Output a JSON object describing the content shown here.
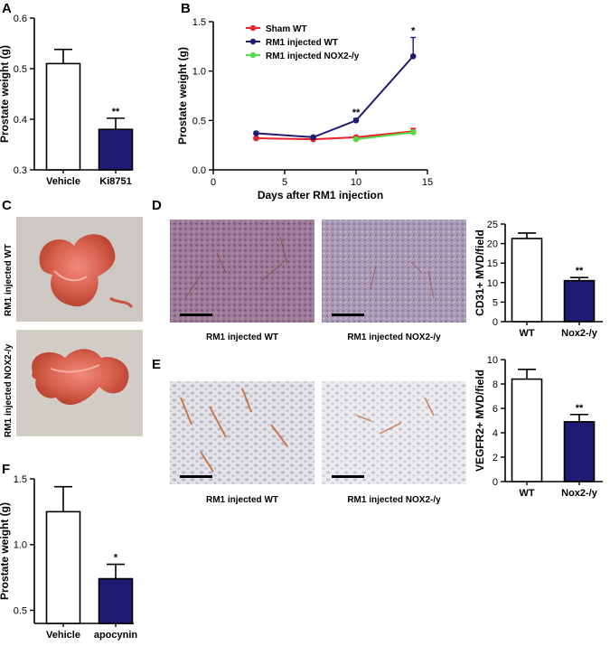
{
  "colors": {
    "navy": "#1f1a72",
    "red": "#e8232a",
    "green": "#55d84a",
    "black": "#000000",
    "white": "#ffffff"
  },
  "chart_data": [
    {
      "id": "A",
      "type": "bar",
      "panel_label": "A",
      "ylabel": "Prostate weight (g)",
      "ylim": [
        0.3,
        0.6
      ],
      "yticks": [
        "0.3",
        "0.4",
        "0.5",
        "0.6"
      ],
      "categories": [
        "Vehicle",
        "Ki8751"
      ],
      "values": [
        0.51,
        0.38
      ],
      "errors": [
        0.028,
        0.022
      ],
      "fills": [
        "#ffffff",
        "#1f1a72"
      ],
      "annotations": [
        "",
        "**"
      ]
    },
    {
      "id": "B",
      "type": "line",
      "panel_label": "B",
      "xlabel": "Days after RM1 injection",
      "ylabel": "Prostate weight (g)",
      "xlim": [
        0,
        15
      ],
      "ylim": [
        0,
        1.5
      ],
      "xticks": [
        "0",
        "5",
        "10",
        "15"
      ],
      "yticks": [
        "0.0",
        "0.5",
        "1.0",
        "1.5"
      ],
      "series": [
        {
          "name": "Sham WT",
          "color": "#e8232a",
          "x": [
            3,
            7,
            10,
            14
          ],
          "y": [
            0.32,
            0.31,
            0.33,
            0.39
          ],
          "errors": [
            0.01,
            0.01,
            0.01,
            0.03
          ]
        },
        {
          "name": "RM1 injected WT",
          "color": "#1f1a72",
          "x": [
            3,
            7,
            10,
            14
          ],
          "y": [
            0.37,
            0.33,
            0.5,
            1.15
          ],
          "errors": [
            0.01,
            0.01,
            0.02,
            0.19
          ]
        },
        {
          "name": "RM1 injected NOX2-/y",
          "color": "#55d84a",
          "x": [
            10,
            14
          ],
          "y": [
            0.31,
            0.38
          ],
          "errors": [
            0.01,
            0.02
          ]
        }
      ],
      "annotations": [
        {
          "x": 10,
          "y": 0.53,
          "text": "**"
        },
        {
          "x": 14,
          "y": 1.36,
          "text": "*"
        }
      ]
    },
    {
      "id": "D",
      "type": "bar",
      "panel_label": "",
      "ylabel": "CD31+ MVD/field",
      "ylim": [
        0,
        25
      ],
      "yticks": [
        "0",
        "5",
        "10",
        "15",
        "20",
        "25"
      ],
      "categories": [
        "WT",
        "Nox2-/y"
      ],
      "values": [
        21.3,
        10.5
      ],
      "errors": [
        1.4,
        0.8
      ],
      "fills": [
        "#ffffff",
        "#1f1a72"
      ],
      "annotations": [
        "",
        "**"
      ]
    },
    {
      "id": "E",
      "type": "bar",
      "panel_label": "",
      "ylabel": "VEGFR2+ MVD/field",
      "ylim": [
        0,
        10
      ],
      "yticks": [
        "0",
        "2",
        "4",
        "6",
        "8",
        "10"
      ],
      "categories": [
        "WT",
        "Nox2-/y"
      ],
      "values": [
        8.4,
        4.9
      ],
      "errors": [
        0.8,
        0.6
      ],
      "fills": [
        "#ffffff",
        "#1f1a72"
      ],
      "annotations": [
        "",
        "**"
      ]
    },
    {
      "id": "F",
      "type": "bar",
      "panel_label": "F",
      "ylabel": "Prostate weight (g)",
      "ylim": [
        0.4,
        1.5
      ],
      "yticks": [
        "0.5",
        "1.0",
        "1.5"
      ],
      "categories": [
        "Vehicle",
        "apocynin"
      ],
      "values": [
        1.25,
        0.74
      ],
      "errors": [
        0.19,
        0.11
      ],
      "fills": [
        "#ffffff",
        "#1f1a72"
      ],
      "annotations": [
        "",
        "*"
      ]
    }
  ],
  "figure": {
    "panel_C": "C",
    "panel_D": "D",
    "panel_E": "E",
    "photo_labels": [
      "RM1 injected WT",
      "RM1 injected NOX2-/y"
    ],
    "captions_D": [
      "RM1 injected WT",
      "RM1 injected NOX2-/y"
    ],
    "captions_E": [
      "RM1 injected WT",
      "RM1 injected NOX2-/y"
    ]
  }
}
